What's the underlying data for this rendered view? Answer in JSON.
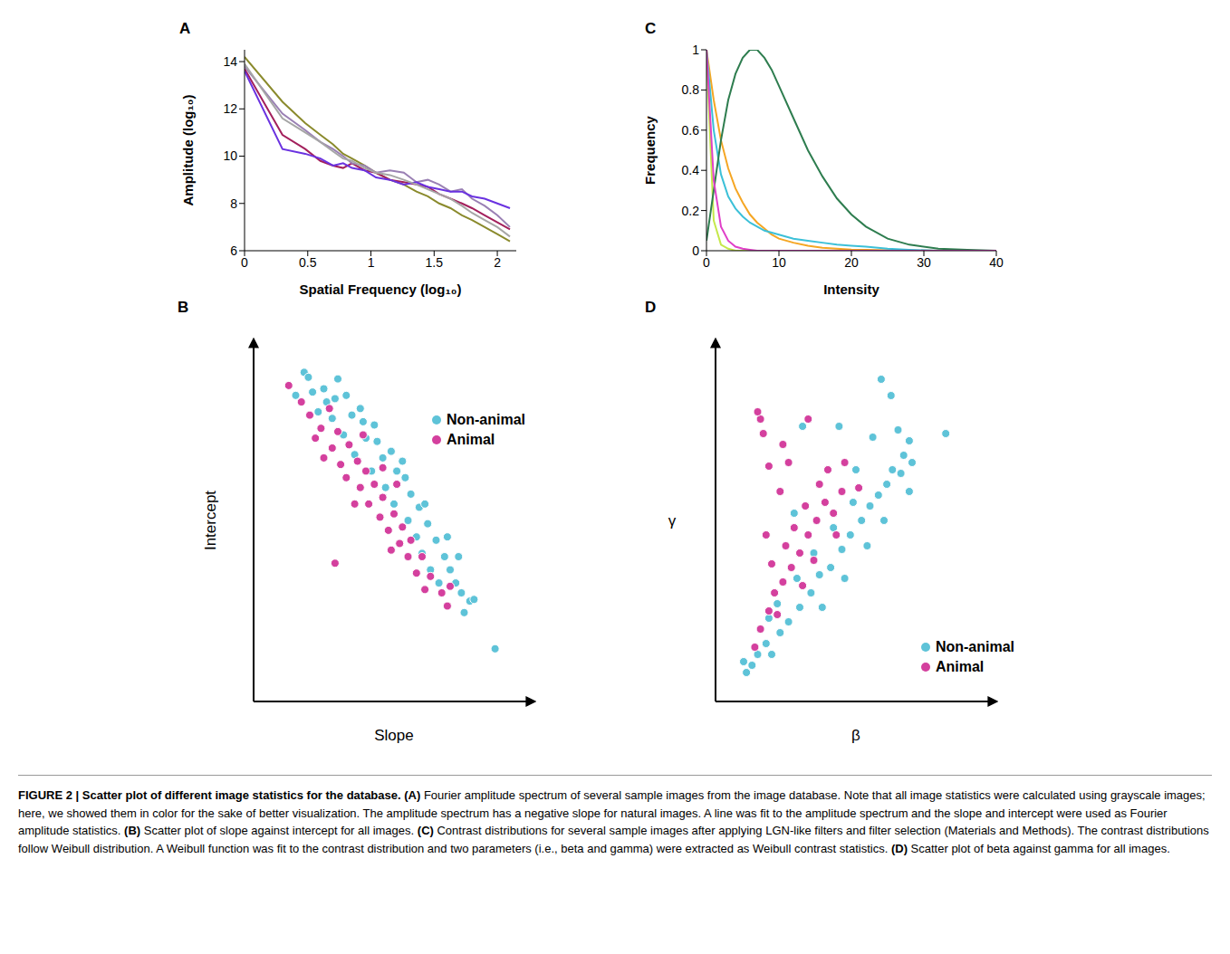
{
  "chart_data": [
    {
      "panel": "A",
      "type": "line",
      "x_label": "Spatial Frequency (log₁₀)",
      "y_label": "Amplitude (log₁₀)",
      "x": [
        0,
        0.3,
        0.48,
        0.6,
        0.7,
        0.78,
        0.85,
        0.95,
        1.04,
        1.15,
        1.26,
        1.36,
        1.45,
        1.54,
        1.63,
        1.72,
        1.8,
        1.9,
        2.0,
        2.1
      ],
      "xlim": [
        0,
        2.15
      ],
      "xticks": [
        0,
        0.5,
        1,
        1.5,
        2
      ],
      "ylim": [
        6,
        14.5
      ],
      "yticks": [
        6,
        8,
        10,
        12,
        14
      ],
      "series": [
        {
          "color": "#8a8a2c",
          "values": [
            14.2,
            12.3,
            11.4,
            10.9,
            10.5,
            10.1,
            9.9,
            9.6,
            9.3,
            9.0,
            8.8,
            8.5,
            8.3,
            8.0,
            7.8,
            7.5,
            7.3,
            7.0,
            6.7,
            6.4
          ]
        },
        {
          "color": "#a3205c",
          "values": [
            13.7,
            10.9,
            10.3,
            9.8,
            9.6,
            9.5,
            9.7,
            9.4,
            9.3,
            9.0,
            8.9,
            8.8,
            8.7,
            8.4,
            8.2,
            8.0,
            7.8,
            7.5,
            7.2,
            6.9
          ]
        },
        {
          "color": "#9a80b4",
          "values": [
            13.8,
            11.8,
            11.1,
            10.6,
            10.3,
            10.0,
            9.7,
            9.6,
            9.3,
            9.4,
            9.3,
            8.9,
            9.0,
            8.8,
            8.5,
            8.6,
            8.2,
            7.9,
            7.5,
            7.0
          ]
        },
        {
          "color": "#6a32e0",
          "values": [
            13.6,
            10.3,
            10.1,
            9.9,
            9.6,
            9.7,
            9.5,
            9.4,
            9.1,
            9.0,
            8.8,
            8.9,
            8.7,
            8.6,
            8.5,
            8.5,
            8.3,
            8.2,
            8.0,
            7.8
          ]
        },
        {
          "color": "#a6a6a6",
          "values": [
            13.9,
            11.6,
            11.0,
            10.6,
            10.2,
            9.9,
            9.8,
            9.5,
            9.3,
            9.2,
            9.0,
            8.8,
            8.6,
            8.4,
            8.2,
            7.9,
            7.6,
            7.3,
            7.0,
            6.6
          ]
        }
      ]
    },
    {
      "panel": "B",
      "type": "scatter",
      "x_label": "Slope",
      "y_label": "Intercept",
      "xlim": [
        0,
        10
      ],
      "ylim": [
        0,
        11
      ],
      "tick_labels": false,
      "legend": "upper right",
      "series": [
        {
          "name": "Non-animal",
          "color": "#5ec3d8",
          "marker": "circle",
          "points": [
            [
              1.8,
              10.0
            ],
            [
              1.95,
              9.85
            ],
            [
              1.5,
              9.3
            ],
            [
              2.1,
              9.4
            ],
            [
              2.5,
              9.5
            ],
            [
              2.9,
              9.2
            ],
            [
              3.3,
              9.3
            ],
            [
              2.3,
              8.8
            ],
            [
              2.8,
              8.6
            ],
            [
              3.5,
              8.7
            ],
            [
              3.9,
              8.5
            ],
            [
              3.2,
              8.1
            ],
            [
              4.0,
              8.0
            ],
            [
              4.4,
              7.9
            ],
            [
              3.6,
              7.5
            ],
            [
              4.6,
              7.4
            ],
            [
              4.9,
              7.6
            ],
            [
              4.2,
              7.0
            ],
            [
              5.1,
              7.0
            ],
            [
              5.4,
              6.8
            ],
            [
              4.7,
              6.5
            ],
            [
              5.6,
              6.3
            ],
            [
              5.0,
              6.0
            ],
            [
              5.9,
              5.9
            ],
            [
              5.5,
              5.5
            ],
            [
              6.2,
              5.4
            ],
            [
              5.8,
              5.0
            ],
            [
              6.5,
              4.9
            ],
            [
              6.0,
              4.5
            ],
            [
              6.8,
              4.4
            ],
            [
              6.3,
              4.0
            ],
            [
              7.0,
              4.0
            ],
            [
              6.6,
              3.6
            ],
            [
              7.2,
              3.6
            ],
            [
              7.4,
              3.3
            ],
            [
              7.7,
              3.05
            ],
            [
              7.85,
              3.1
            ],
            [
              7.5,
              2.7
            ],
            [
              8.6,
              1.6
            ],
            [
              3.0,
              9.8
            ],
            [
              2.6,
              9.1
            ],
            [
              4.3,
              8.4
            ],
            [
              5.3,
              7.3
            ],
            [
              6.1,
              6.0
            ],
            [
              6.9,
              5.0
            ],
            [
              7.3,
              4.4
            ],
            [
              3.8,
              8.9
            ]
          ]
        },
        {
          "name": "Animal",
          "color": "#d4409e",
          "marker": "circle",
          "points": [
            [
              1.25,
              9.6
            ],
            [
              1.7,
              9.1
            ],
            [
              2.0,
              8.7
            ],
            [
              2.4,
              8.3
            ],
            [
              2.7,
              8.9
            ],
            [
              2.2,
              8.0
            ],
            [
              3.0,
              8.2
            ],
            [
              2.8,
              7.7
            ],
            [
              3.4,
              7.8
            ],
            [
              3.1,
              7.2
            ],
            [
              3.7,
              7.3
            ],
            [
              3.3,
              6.8
            ],
            [
              4.0,
              7.0
            ],
            [
              3.8,
              6.5
            ],
            [
              4.3,
              6.6
            ],
            [
              4.1,
              6.0
            ],
            [
              4.6,
              6.2
            ],
            [
              4.5,
              5.6
            ],
            [
              5.0,
              5.7
            ],
            [
              4.8,
              5.2
            ],
            [
              5.3,
              5.3
            ],
            [
              5.2,
              4.8
            ],
            [
              5.6,
              4.9
            ],
            [
              5.5,
              4.4
            ],
            [
              6.0,
              4.4
            ],
            [
              5.8,
              3.9
            ],
            [
              6.3,
              3.8
            ],
            [
              6.1,
              3.4
            ],
            [
              6.7,
              3.3
            ],
            [
              7.0,
              3.5
            ],
            [
              6.9,
              2.9
            ],
            [
              3.6,
              6.0
            ],
            [
              3.9,
              8.1
            ],
            [
              4.6,
              7.1
            ],
            [
              2.5,
              7.4
            ],
            [
              5.1,
              6.6
            ],
            [
              4.9,
              4.6
            ],
            [
              2.9,
              4.2
            ]
          ]
        }
      ]
    },
    {
      "panel": "C",
      "type": "line",
      "x_label": "Intensity",
      "y_label": "Frequency",
      "x": [
        0,
        1,
        2,
        3,
        4,
        5,
        6,
        7,
        8,
        9,
        10,
        12,
        14,
        16,
        18,
        20,
        22,
        25,
        28,
        32,
        36,
        40
      ],
      "xlim": [
        0,
        40
      ],
      "xticks": [
        0,
        10,
        20,
        30,
        40
      ],
      "ylim": [
        0,
        1
      ],
      "yticks": [
        0,
        0.2,
        0.4,
        0.6,
        0.8,
        1
      ],
      "series": [
        {
          "color": "#c5e84a",
          "values": [
            0.98,
            0.15,
            0.03,
            0.01,
            0,
            0,
            0,
            0,
            0,
            0,
            0,
            0,
            0,
            0,
            0,
            0,
            0,
            0,
            0,
            0,
            0,
            0
          ]
        },
        {
          "color": "#f5a623",
          "values": [
            1,
            0.75,
            0.55,
            0.41,
            0.31,
            0.24,
            0.18,
            0.14,
            0.11,
            0.08,
            0.06,
            0.04,
            0.025,
            0.015,
            0.01,
            0.006,
            0.004,
            0.002,
            0.001,
            0,
            0,
            0
          ]
        },
        {
          "color": "#3cc0d8",
          "values": [
            1,
            0.6,
            0.38,
            0.27,
            0.21,
            0.17,
            0.14,
            0.12,
            0.1,
            0.09,
            0.08,
            0.06,
            0.05,
            0.04,
            0.03,
            0.025,
            0.02,
            0.01,
            0.005,
            0,
            0,
            0
          ]
        },
        {
          "color": "#2e7d4f",
          "values": [
            0.05,
            0.3,
            0.55,
            0.75,
            0.88,
            0.96,
            1.0,
            1.0,
            0.96,
            0.9,
            0.82,
            0.66,
            0.5,
            0.37,
            0.26,
            0.18,
            0.12,
            0.06,
            0.03,
            0.01,
            0.005,
            0
          ]
        },
        {
          "color": "#e040c8",
          "values": [
            1,
            0.35,
            0.12,
            0.05,
            0.02,
            0.01,
            0.005,
            0,
            0,
            0,
            0,
            0,
            0,
            0,
            0,
            0,
            0,
            0,
            0,
            0,
            0,
            0
          ]
        }
      ]
    },
    {
      "panel": "D",
      "type": "scatter",
      "x_label": "β",
      "y_label": "γ",
      "xlim": [
        0,
        10
      ],
      "ylim": [
        0,
        10
      ],
      "tick_labels": false,
      "legend": "lower right",
      "series": [
        {
          "name": "Non-animal",
          "color": "#5ec3d8",
          "marker": "circle",
          "points": [
            [
              1.1,
              0.8
            ],
            [
              1.3,
              1.0
            ],
            [
              1.0,
              1.1
            ],
            [
              1.5,
              1.3
            ],
            [
              1.8,
              1.6
            ],
            [
              2.0,
              1.3
            ],
            [
              2.3,
              1.9
            ],
            [
              2.6,
              2.2
            ],
            [
              2.2,
              2.7
            ],
            [
              3.0,
              2.6
            ],
            [
              3.4,
              3.0
            ],
            [
              2.9,
              3.4
            ],
            [
              3.7,
              3.5
            ],
            [
              4.1,
              3.7
            ],
            [
              3.5,
              4.1
            ],
            [
              4.5,
              4.2
            ],
            [
              4.8,
              4.6
            ],
            [
              4.2,
              4.8
            ],
            [
              5.2,
              5.0
            ],
            [
              5.5,
              5.4
            ],
            [
              4.9,
              5.5
            ],
            [
              5.8,
              5.7
            ],
            [
              6.1,
              6.0
            ],
            [
              6.3,
              6.4
            ],
            [
              6.6,
              6.3
            ],
            [
              6.7,
              6.8
            ],
            [
              6.9,
              7.2
            ],
            [
              7.0,
              6.6
            ],
            [
              8.2,
              7.4
            ],
            [
              5.9,
              8.9
            ],
            [
              6.25,
              8.45
            ],
            [
              6.5,
              7.5
            ],
            [
              5.6,
              7.3
            ],
            [
              4.4,
              7.6
            ],
            [
              2.8,
              5.2
            ],
            [
              3.1,
              7.6
            ],
            [
              5.0,
              6.4
            ],
            [
              6.0,
              5.0
            ],
            [
              5.4,
              4.3
            ],
            [
              4.6,
              3.4
            ],
            [
              3.8,
              2.6
            ],
            [
              1.9,
              2.3
            ],
            [
              6.9,
              5.8
            ]
          ]
        },
        {
          "name": "Animal",
          "color": "#d4409e",
          "marker": "circle",
          "points": [
            [
              1.4,
              1.5
            ],
            [
              1.6,
              2.0
            ],
            [
              1.9,
              2.5
            ],
            [
              2.1,
              3.0
            ],
            [
              2.4,
              3.3
            ],
            [
              2.0,
              3.8
            ],
            [
              2.7,
              3.7
            ],
            [
              2.5,
              4.3
            ],
            [
              3.0,
              4.1
            ],
            [
              2.8,
              4.8
            ],
            [
              3.3,
              4.6
            ],
            [
              3.6,
              5.0
            ],
            [
              3.2,
              5.4
            ],
            [
              3.9,
              5.5
            ],
            [
              4.2,
              5.2
            ],
            [
              3.7,
              6.0
            ],
            [
              4.5,
              5.8
            ],
            [
              4.0,
              6.4
            ],
            [
              2.3,
              5.8
            ],
            [
              1.9,
              6.5
            ],
            [
              1.7,
              7.4
            ],
            [
              1.6,
              7.8
            ],
            [
              2.4,
              7.1
            ],
            [
              3.3,
              7.8
            ],
            [
              4.6,
              6.6
            ],
            [
              5.1,
              5.9
            ],
            [
              1.8,
              4.6
            ],
            [
              3.1,
              3.2
            ],
            [
              2.2,
              2.4
            ],
            [
              3.5,
              3.9
            ],
            [
              4.3,
              4.6
            ],
            [
              2.6,
              6.6
            ],
            [
              1.5,
              8.0
            ]
          ]
        }
      ]
    }
  ],
  "caption": {
    "title": "FIGURE 2 | Scatter plot of different image statistics for the database.",
    "parts": [
      {
        "label": "(A)",
        "text": "Fourier amplitude spectrum of several sample images from the image database. Note that all image statistics were calculated using grayscale images; here, we showed them in color for the sake of better visualization. The amplitude spectrum has a negative slope for natural images. A line was fit to the amplitude spectrum and the slope and intercept were used as Fourier amplitude statistics."
      },
      {
        "label": "(B)",
        "text": "Scatter plot of slope against intercept for all images."
      },
      {
        "label": "(C)",
        "text": "Contrast distributions for several sample images after applying LGN-like filters and filter selection (Materials and Methods). The contrast distributions follow Weibull distribution. A Weibull function was fit to the contrast distribution and two parameters (i.e., beta and gamma) were extracted as Weibull contrast statistics."
      },
      {
        "label": "(D)",
        "text": "Scatter plot of beta against gamma for all images."
      }
    ]
  }
}
